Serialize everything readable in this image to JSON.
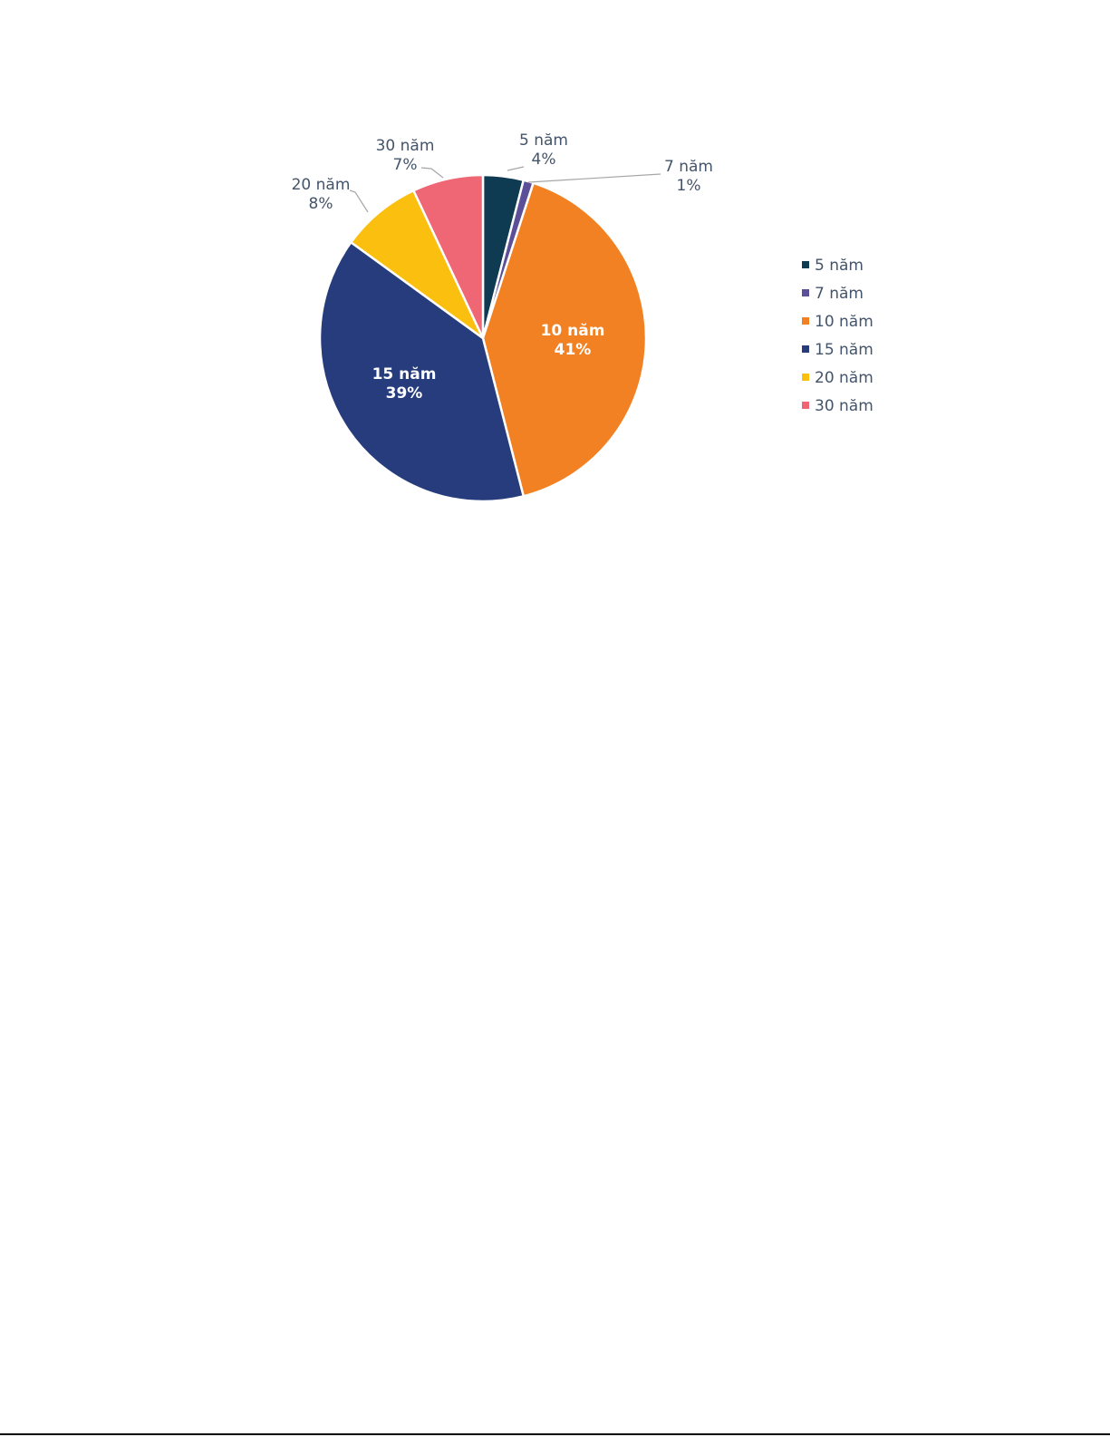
{
  "chart_data": {
    "type": "pie",
    "categories": [
      "5 năm",
      "7 năm",
      "10 năm",
      "15 năm",
      "20 năm",
      "30 năm"
    ],
    "values": [
      4,
      1,
      41,
      39,
      8,
      7
    ],
    "value_labels": [
      "4%",
      "1%",
      "41%",
      "39%",
      "8%",
      "7%"
    ],
    "colors": [
      "#0e3a52",
      "#5b4f9a",
      "#f28123",
      "#263c7d",
      "#fbbf10",
      "#ef6674"
    ],
    "legend_position": "right",
    "title": ""
  }
}
